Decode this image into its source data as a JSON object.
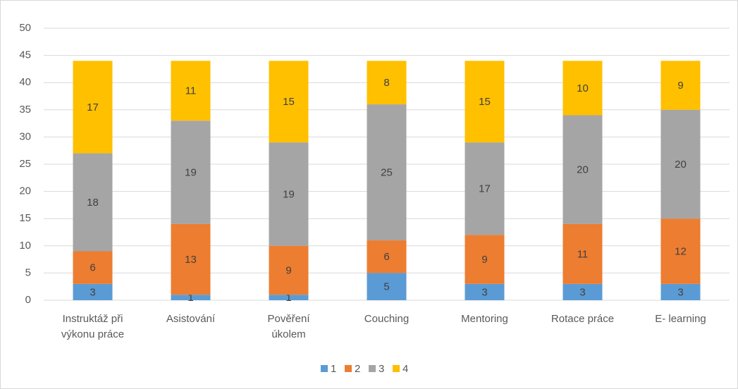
{
  "chart_data": {
    "type": "stacked_bar",
    "categories": [
      "Instruktáž při výkonu práce",
      "Asistování",
      "Pověření úkolem",
      "Couching",
      "Mentoring",
      "Rotace práce",
      "E- learning"
    ],
    "series": [
      {
        "name": "1",
        "color": "#5b9bd5",
        "values": [
          3,
          1,
          1,
          5,
          3,
          3,
          3
        ]
      },
      {
        "name": "2",
        "color": "#ed7d31",
        "values": [
          6,
          13,
          9,
          6,
          9,
          11,
          12
        ]
      },
      {
        "name": "3",
        "color": "#a5a5a5",
        "values": [
          18,
          19,
          19,
          25,
          17,
          20,
          20
        ]
      },
      {
        "name": "4",
        "color": "#ffc000",
        "values": [
          17,
          11,
          15,
          8,
          15,
          10,
          9
        ]
      }
    ],
    "ylim": [
      0,
      50
    ],
    "yticks": [
      0,
      5,
      10,
      15,
      20,
      25,
      30,
      35,
      40,
      45,
      50
    ],
    "grid": true,
    "legend": "bottom"
  }
}
